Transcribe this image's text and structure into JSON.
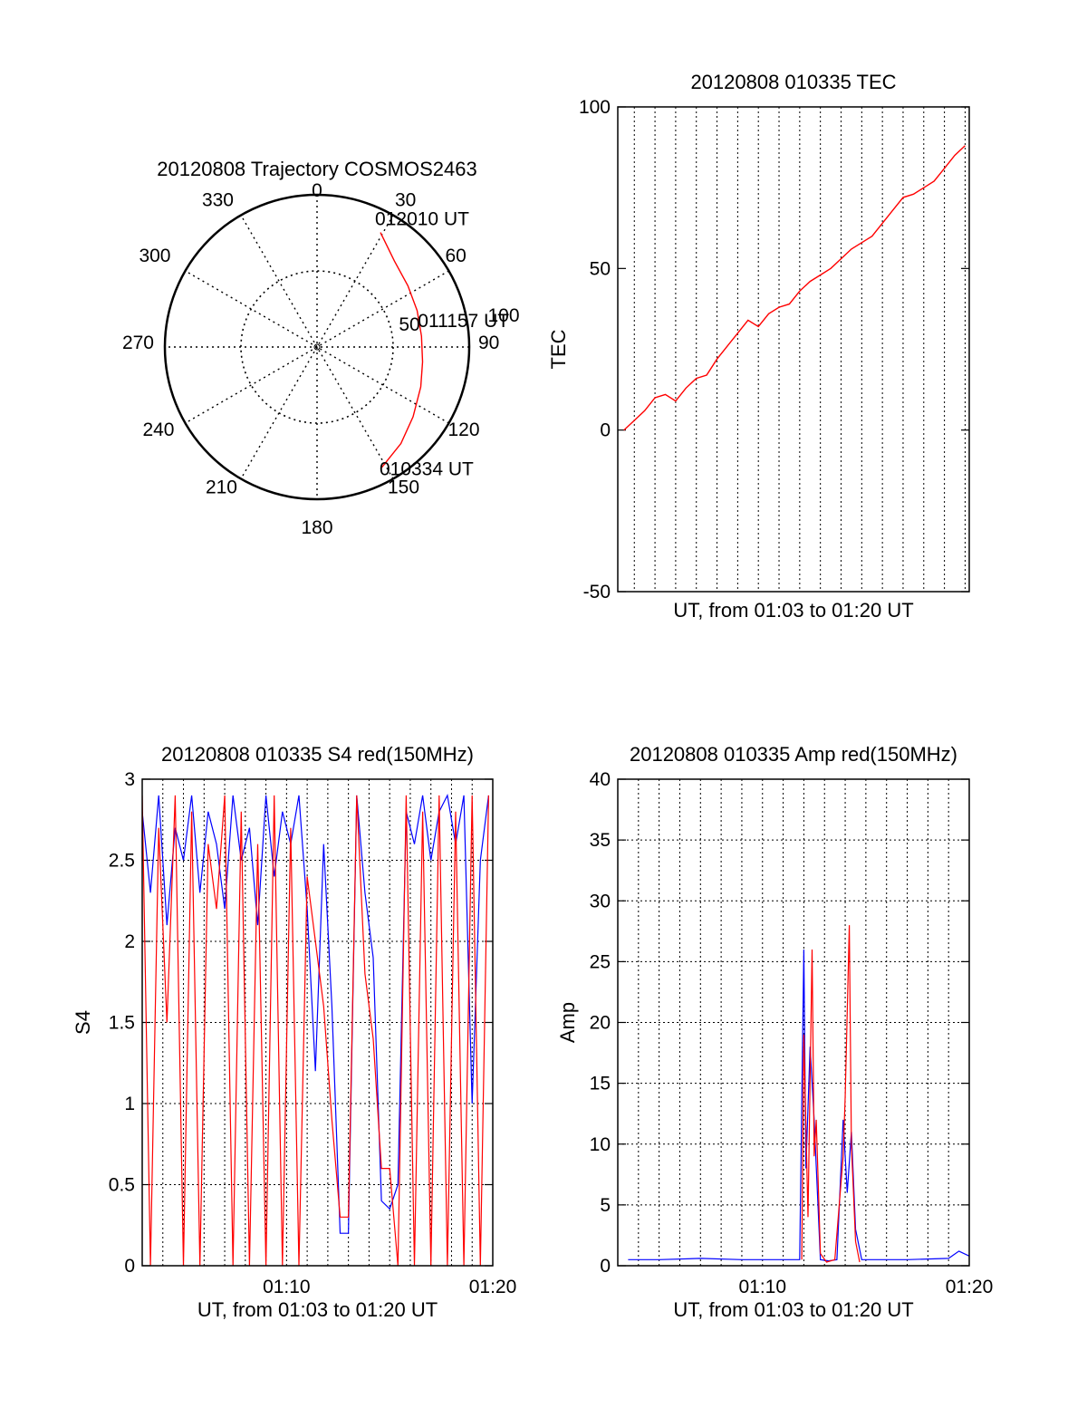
{
  "chart_data": [
    {
      "type": "polar",
      "title": "20120808 Trajectory COSMOS2463",
      "angle_labels": [
        "0",
        "30",
        "60",
        "90",
        "120",
        "150",
        "180",
        "210",
        "240",
        "270",
        "300",
        "330"
      ],
      "radial_labels": [
        "50",
        "100"
      ],
      "radial_range": [
        0,
        100
      ],
      "grid": true,
      "trajectory_color": "#ff0000",
      "trajectory": {
        "azimuth_deg": [
          29,
          42,
          56,
          70,
          84,
          98,
          111,
          126,
          139,
          152
        ],
        "zenith_deg": [
          86,
          76,
          72,
          70,
          69,
          70,
          73,
          78,
          84,
          90
        ]
      },
      "annotations": [
        {
          "text": "012010 UT",
          "azimuth_deg": 29,
          "zenith_deg": 86
        },
        {
          "text": "011157 UT",
          "azimuth_deg": 84,
          "zenith_deg": 69
        },
        {
          "text": "010334 UT",
          "azimuth_deg": 152,
          "zenith_deg": 90
        }
      ]
    },
    {
      "type": "line",
      "title": "20120808 010335 TEC",
      "xlabel": "UT, from 01:03 to 01:20 UT",
      "ylabel": "TEC",
      "ylim": [
        -50,
        100
      ],
      "yticks": [
        "-50",
        "0",
        "50",
        "100"
      ],
      "xlim_minutes": [
        3.2,
        20.2
      ],
      "grid": "vertical dotted",
      "series": [
        {
          "color": "#ff0000",
          "x": [
            3.5,
            4.0,
            4.5,
            5.0,
            5.5,
            6.0,
            6.5,
            7.0,
            7.5,
            8.0,
            8.5,
            9.0,
            9.5,
            10.0,
            10.5,
            11.0,
            11.5,
            12.0,
            12.5,
            13.0,
            13.5,
            14.0,
            14.5,
            15.0,
            15.5,
            16.0,
            16.5,
            17.0,
            17.5,
            18.0,
            18.5,
            19.0,
            19.5,
            20.0
          ],
          "y": [
            0,
            3,
            6,
            10,
            11,
            9,
            13,
            16,
            17,
            22,
            26,
            30,
            34,
            32,
            36,
            38,
            39,
            43,
            46,
            48,
            50,
            53,
            56,
            58,
            60,
            64,
            68,
            72,
            73,
            75,
            77,
            81,
            85,
            88
          ]
        }
      ]
    },
    {
      "type": "line",
      "title": "20120808 010335 S4 red(150MHz)",
      "xlabel": "UT, from 01:03 to 01:20 UT",
      "ylabel": "S4",
      "ylim": [
        0,
        3
      ],
      "yticks": [
        "0",
        "0.5",
        "1",
        "1.5",
        "2",
        "2.5",
        "3"
      ],
      "xlim_minutes": [
        3.0,
        20.0
      ],
      "xticks": [
        {
          "minute": 10,
          "label": "01:10"
        },
        {
          "minute": 20,
          "label": "01:20"
        }
      ],
      "grid": "dotted",
      "series": [
        {
          "color": "#0000ff",
          "x": [
            3.0,
            3.4,
            3.8,
            4.2,
            4.6,
            5.0,
            5.4,
            5.8,
            6.2,
            6.6,
            7.0,
            7.4,
            7.8,
            8.2,
            8.6,
            9.0,
            9.4,
            9.8,
            10.2,
            10.6,
            11.0,
            11.4,
            11.8,
            12.2,
            12.6,
            13.0,
            13.4,
            13.8,
            14.2,
            14.6,
            15.0,
            15.4,
            15.8,
            16.2,
            16.6,
            17.0,
            17.4,
            17.8,
            18.2,
            18.6,
            19.0,
            19.4,
            19.8
          ],
          "y": [
            2.8,
            2.3,
            2.9,
            2.1,
            2.7,
            2.5,
            2.9,
            2.3,
            2.8,
            2.6,
            2.2,
            2.9,
            2.5,
            2.7,
            2.1,
            2.9,
            2.4,
            2.8,
            2.6,
            2.9,
            2.2,
            1.2,
            2.6,
            1.6,
            0.2,
            0.2,
            2.9,
            2.3,
            1.9,
            0.4,
            0.35,
            0.5,
            2.8,
            2.6,
            2.9,
            2.5,
            2.8,
            2.9,
            2.6,
            2.9,
            1.0,
            2.5,
            2.9
          ]
        },
        {
          "color": "#ff0000",
          "x": [
            3.0,
            3.4,
            3.8,
            4.2,
            4.6,
            5.0,
            5.4,
            5.8,
            6.2,
            6.6,
            7.0,
            7.4,
            7.8,
            8.2,
            8.6,
            9.0,
            9.4,
            9.8,
            10.2,
            10.6,
            11.0,
            11.4,
            11.8,
            12.2,
            12.6,
            13.0,
            13.4,
            13.8,
            14.2,
            14.6,
            15.0,
            15.4,
            15.8,
            16.2,
            16.6,
            17.0,
            17.4,
            17.8,
            18.2,
            18.6,
            19.0,
            19.4,
            19.8
          ],
          "y": [
            2.9,
            0.0,
            2.7,
            1.5,
            2.9,
            0.0,
            2.8,
            0.0,
            2.6,
            2.2,
            2.9,
            0.0,
            2.8,
            0.0,
            2.6,
            0.0,
            2.9,
            0.0,
            2.7,
            0.0,
            2.4,
            2.0,
            1.6,
            0.9,
            0.3,
            0.3,
            2.9,
            1.8,
            1.4,
            0.6,
            0.6,
            0.0,
            2.9,
            0.0,
            2.8,
            0.0,
            2.9,
            0.0,
            2.8,
            0.0,
            2.9,
            0.0,
            2.9
          ]
        }
      ]
    },
    {
      "type": "line",
      "title": "20120808 010335 Amp red(150MHz)",
      "xlabel": "UT, from 01:03 to 01:20 UT",
      "ylabel": "Amp",
      "ylim": [
        0,
        40
      ],
      "yticks": [
        "0",
        "5",
        "10",
        "15",
        "20",
        "25",
        "30",
        "35",
        "40"
      ],
      "xlim_minutes": [
        3.0,
        20.0
      ],
      "xticks": [
        {
          "minute": 10,
          "label": "01:10"
        },
        {
          "minute": 20,
          "label": "01:20"
        }
      ],
      "grid": "dotted",
      "series": [
        {
          "color": "#0000ff",
          "x": [
            3.5,
            5.0,
            7.0,
            9.0,
            11.0,
            11.8,
            12.0,
            12.1,
            12.3,
            12.5,
            12.8,
            13.2,
            13.6,
            13.9,
            14.1,
            14.3,
            14.5,
            14.8,
            15.3,
            17.0,
            19.0,
            19.5,
            20.0
          ],
          "y": [
            0.5,
            0.5,
            0.6,
            0.5,
            0.5,
            0.5,
            26,
            8,
            18,
            12,
            0.5,
            0.4,
            0.5,
            12,
            6,
            11,
            3,
            0.5,
            0.5,
            0.5,
            0.6,
            1.2,
            0.8
          ]
        },
        {
          "color": "#ff0000",
          "x": [
            11.9,
            12.0,
            12.2,
            12.4,
            12.5,
            12.6,
            12.8,
            13.1,
            13.5,
            13.9,
            14.0,
            14.2,
            14.3,
            14.5,
            14.7
          ],
          "y": [
            0.5,
            19,
            4,
            26,
            9,
            12,
            1,
            0.3,
            0.5,
            9,
            14,
            28,
            10,
            2,
            0.3
          ]
        }
      ]
    }
  ]
}
